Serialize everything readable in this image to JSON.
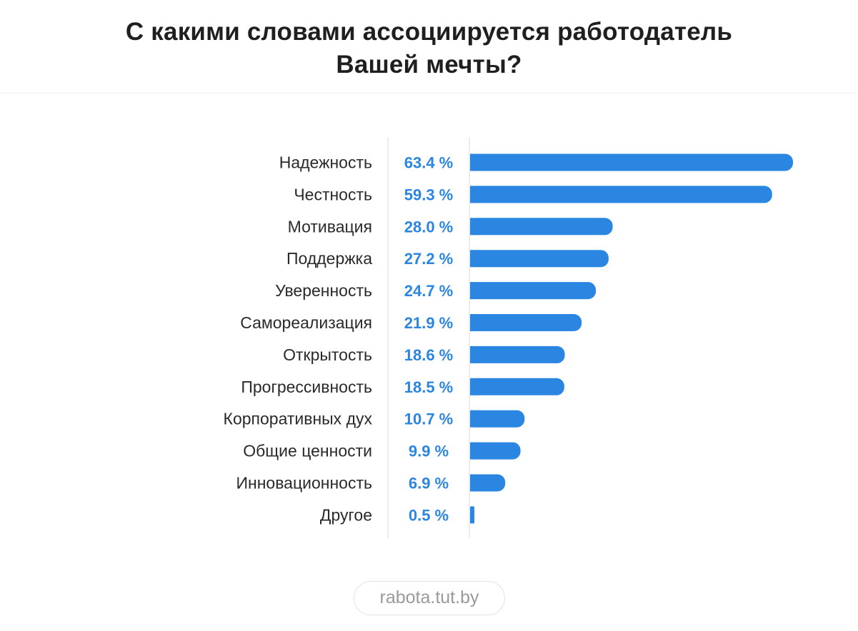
{
  "title_line1": "С какими словами ассоциируется работодатель",
  "title_line2": "Вашей мечты?",
  "source": "rabota.tut.by",
  "colors": {
    "bar": "#2a86e0",
    "value_text": "#2a86e0",
    "axis": "#e6e6e6"
  },
  "chart_data": {
    "type": "bar",
    "orientation": "horizontal",
    "categories": [
      "Надежность",
      "Честность",
      "Мотивация",
      "Поддержка",
      "Уверенность",
      "Самореализация",
      "Открытость",
      "Прогрессивность",
      "Корпоративных дух",
      "Общие ценности",
      "Инновационность",
      "Другое"
    ],
    "values": [
      63.4,
      59.3,
      28.0,
      27.2,
      24.7,
      21.9,
      18.6,
      18.5,
      10.7,
      9.9,
      6.9,
      0.5
    ],
    "value_labels": [
      "63.4 %",
      "59.3 %",
      "28.0 %",
      "27.2 %",
      "24.7 %",
      "21.9 %",
      "18.6 %",
      "18.5 %",
      "10.7 %",
      "9.9 %",
      "6.9 %",
      "0.5 %"
    ],
    "unit": "%",
    "xlim": [
      0,
      63.4
    ],
    "grid": false,
    "legend": "none"
  }
}
